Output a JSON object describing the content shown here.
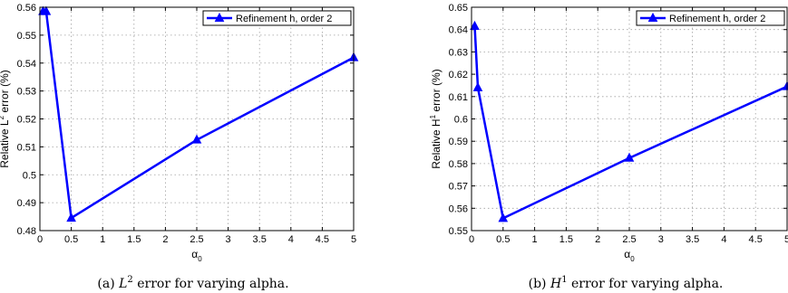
{
  "chart_data": [
    {
      "type": "line",
      "xlabel": "α",
      "xlabel_sub": "0",
      "ylabel_pre": "Relative L",
      "ylabel_sup": "2",
      "ylabel_post": " error (%)",
      "xlim": [
        0,
        5
      ],
      "ylim": [
        0.48,
        0.56
      ],
      "xticks": [
        "0",
        "0.5",
        "1",
        "1.5",
        "2",
        "2.5",
        "3",
        "3.5",
        "4",
        "4.5",
        "5"
      ],
      "yticks": [
        "0.48",
        "0.49",
        "0.5",
        "0.51",
        "0.52",
        "0.53",
        "0.54",
        "0.55",
        "0.56"
      ],
      "grid": true,
      "legend_position": "top-right",
      "series": [
        {
          "name": "Refinement h, order 2",
          "x": [
            0.05,
            0.1,
            0.5,
            2.5,
            5
          ],
          "y": [
            0.5585,
            0.5585,
            0.4845,
            0.5125,
            0.542
          ]
        }
      ],
      "caption_pre": "(a) ",
      "caption_math": "L",
      "caption_sup": "2",
      "caption_post": " error for varying alpha."
    },
    {
      "type": "line",
      "xlabel": "α",
      "xlabel_sub": "0",
      "ylabel_pre": "Relative H",
      "ylabel_sup": "1",
      "ylabel_post": " error (%)",
      "xlim": [
        0,
        5
      ],
      "ylim": [
        0.55,
        0.65
      ],
      "xticks": [
        "0",
        "0.5",
        "1",
        "1.5",
        "2",
        "2.5",
        "3",
        "3.5",
        "4",
        "4.5",
        "5"
      ],
      "yticks": [
        "0.55",
        "0.56",
        "0.57",
        "0.58",
        "0.59",
        "0.6",
        "0.61",
        "0.62",
        "0.63",
        "0.64",
        "0.65"
      ],
      "grid": true,
      "legend_position": "top-right",
      "series": [
        {
          "name": "Refinement h, order 2",
          "x": [
            0.05,
            0.1,
            0.5,
            2.5,
            5
          ],
          "y": [
            0.6415,
            0.614,
            0.5555,
            0.5825,
            0.6145
          ]
        }
      ],
      "caption_pre": "(b) ",
      "caption_math": "H",
      "caption_sup": "1",
      "caption_post": " error for varying alpha."
    }
  ]
}
